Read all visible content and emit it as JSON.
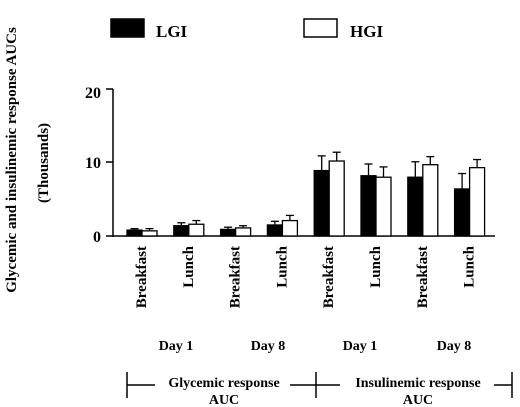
{
  "chart_data": {
    "type": "bar",
    "ylabel": "Glycemic and insulinemic response AUCs",
    "yunit_label": "(Thousands)",
    "ylim": [
      0,
      20
    ],
    "yticks": [
      0,
      10,
      20
    ],
    "grid": false,
    "legend_position": "top",
    "categories": [
      "Breakfast",
      "Lunch",
      "Breakfast",
      "Lunch",
      "Breakfast",
      "Lunch",
      "Breakfast",
      "Lunch"
    ],
    "day_labels": [
      "Day 1",
      "Day 8",
      "Day 1",
      "Day 8"
    ],
    "group_labels": [
      {
        "line1": "Glycemic response",
        "line2": "AUC"
      },
      {
        "line1": "Insulinemic response",
        "line2": "AUC"
      }
    ],
    "series": [
      {
        "name": "LGI",
        "color": "#000000",
        "values": [
          0.8,
          1.4,
          0.9,
          1.5,
          8.9,
          8.2,
          8.0,
          6.4
        ],
        "errors": [
          0.2,
          0.4,
          0.3,
          0.5,
          2.0,
          1.6,
          2.1,
          2.1
        ]
      },
      {
        "name": "HGI",
        "color": "#ffffff",
        "values": [
          0.7,
          1.6,
          1.1,
          2.1,
          10.2,
          8.0,
          9.7,
          9.3
        ],
        "errors": [
          0.3,
          0.5,
          0.3,
          0.7,
          1.2,
          1.4,
          1.1,
          1.1
        ]
      }
    ]
  }
}
